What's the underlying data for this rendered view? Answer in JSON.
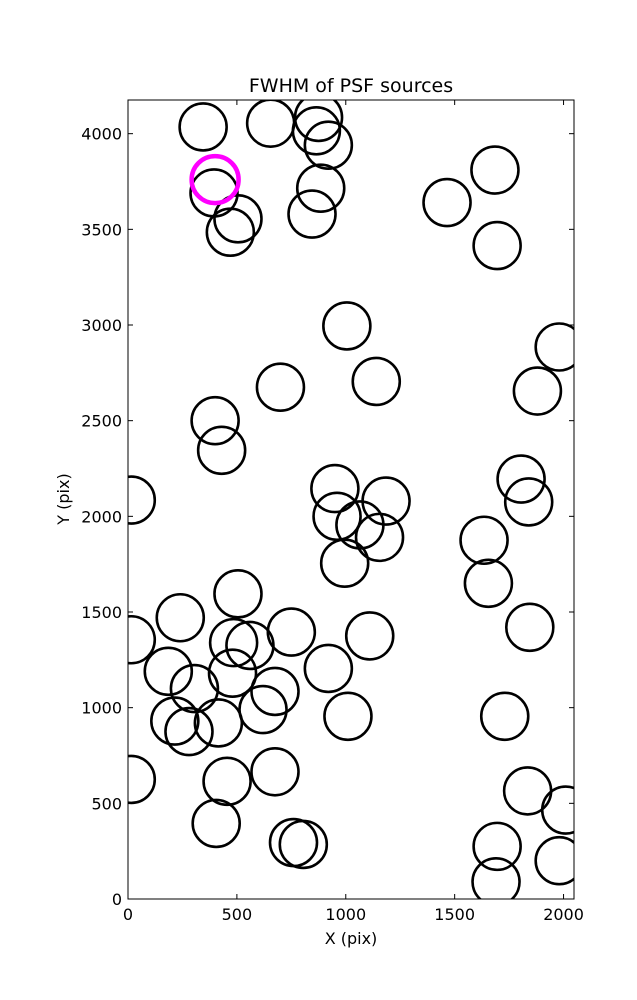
{
  "chart_data": {
    "type": "scatter",
    "title": "FWHM of PSF sources",
    "xlabel": "X (pix)",
    "ylabel": "Y (pix)",
    "xlim": [
      0,
      2048
    ],
    "ylim": [
      0,
      4176
    ],
    "xticks": [
      0,
      500,
      1000,
      1500,
      2000
    ],
    "yticks": [
      0,
      500,
      1000,
      1500,
      2000,
      2500,
      3000,
      3500,
      4000
    ],
    "grid": false,
    "legend": "none",
    "marker": "open circle",
    "series": [
      {
        "color": "#000000",
        "points": [
          [
            345,
            4035
          ],
          [
            655,
            4055
          ],
          [
            875,
            4085
          ],
          [
            865,
            4015
          ],
          [
            920,
            3940
          ],
          [
            395,
            3690
          ],
          [
            505,
            3555
          ],
          [
            470,
            3485
          ],
          [
            885,
            3715
          ],
          [
            845,
            3580
          ],
          [
            1465,
            3640
          ],
          [
            1685,
            3810
          ],
          [
            1695,
            3415
          ],
          [
            1005,
            2995
          ],
          [
            1140,
            2705
          ],
          [
            700,
            2675
          ],
          [
            400,
            2500
          ],
          [
            430,
            2345
          ],
          [
            1980,
            2885
          ],
          [
            1880,
            2655
          ],
          [
            15,
            2085
          ],
          [
            950,
            2145
          ],
          [
            1185,
            2080
          ],
          [
            960,
            2000
          ],
          [
            1065,
            1955
          ],
          [
            1155,
            1890
          ],
          [
            995,
            1755
          ],
          [
            1805,
            2195
          ],
          [
            1840,
            2075
          ],
          [
            1635,
            1875
          ],
          [
            1655,
            1650
          ],
          [
            505,
            1595
          ],
          [
            240,
            1470
          ],
          [
            15,
            1355
          ],
          [
            750,
            1395
          ],
          [
            485,
            1340
          ],
          [
            560,
            1325
          ],
          [
            185,
            1190
          ],
          [
            480,
            1180
          ],
          [
            305,
            1100
          ],
          [
            675,
            1085
          ],
          [
            620,
            990
          ],
          [
            920,
            1205
          ],
          [
            1110,
            1375
          ],
          [
            1845,
            1420
          ],
          [
            215,
            930
          ],
          [
            280,
            875
          ],
          [
            415,
            920
          ],
          [
            1010,
            955
          ],
          [
            1730,
            955
          ],
          [
            15,
            625
          ],
          [
            455,
            615
          ],
          [
            675,
            665
          ],
          [
            1835,
            565
          ],
          [
            405,
            395
          ],
          [
            760,
            295
          ],
          [
            805,
            285
          ],
          [
            1695,
            275
          ],
          [
            1690,
            90
          ],
          [
            2010,
            465
          ],
          [
            1980,
            200
          ]
        ]
      },
      {
        "color": "#ff00ff",
        "points": [
          [
            400,
            3760
          ]
        ]
      }
    ]
  }
}
